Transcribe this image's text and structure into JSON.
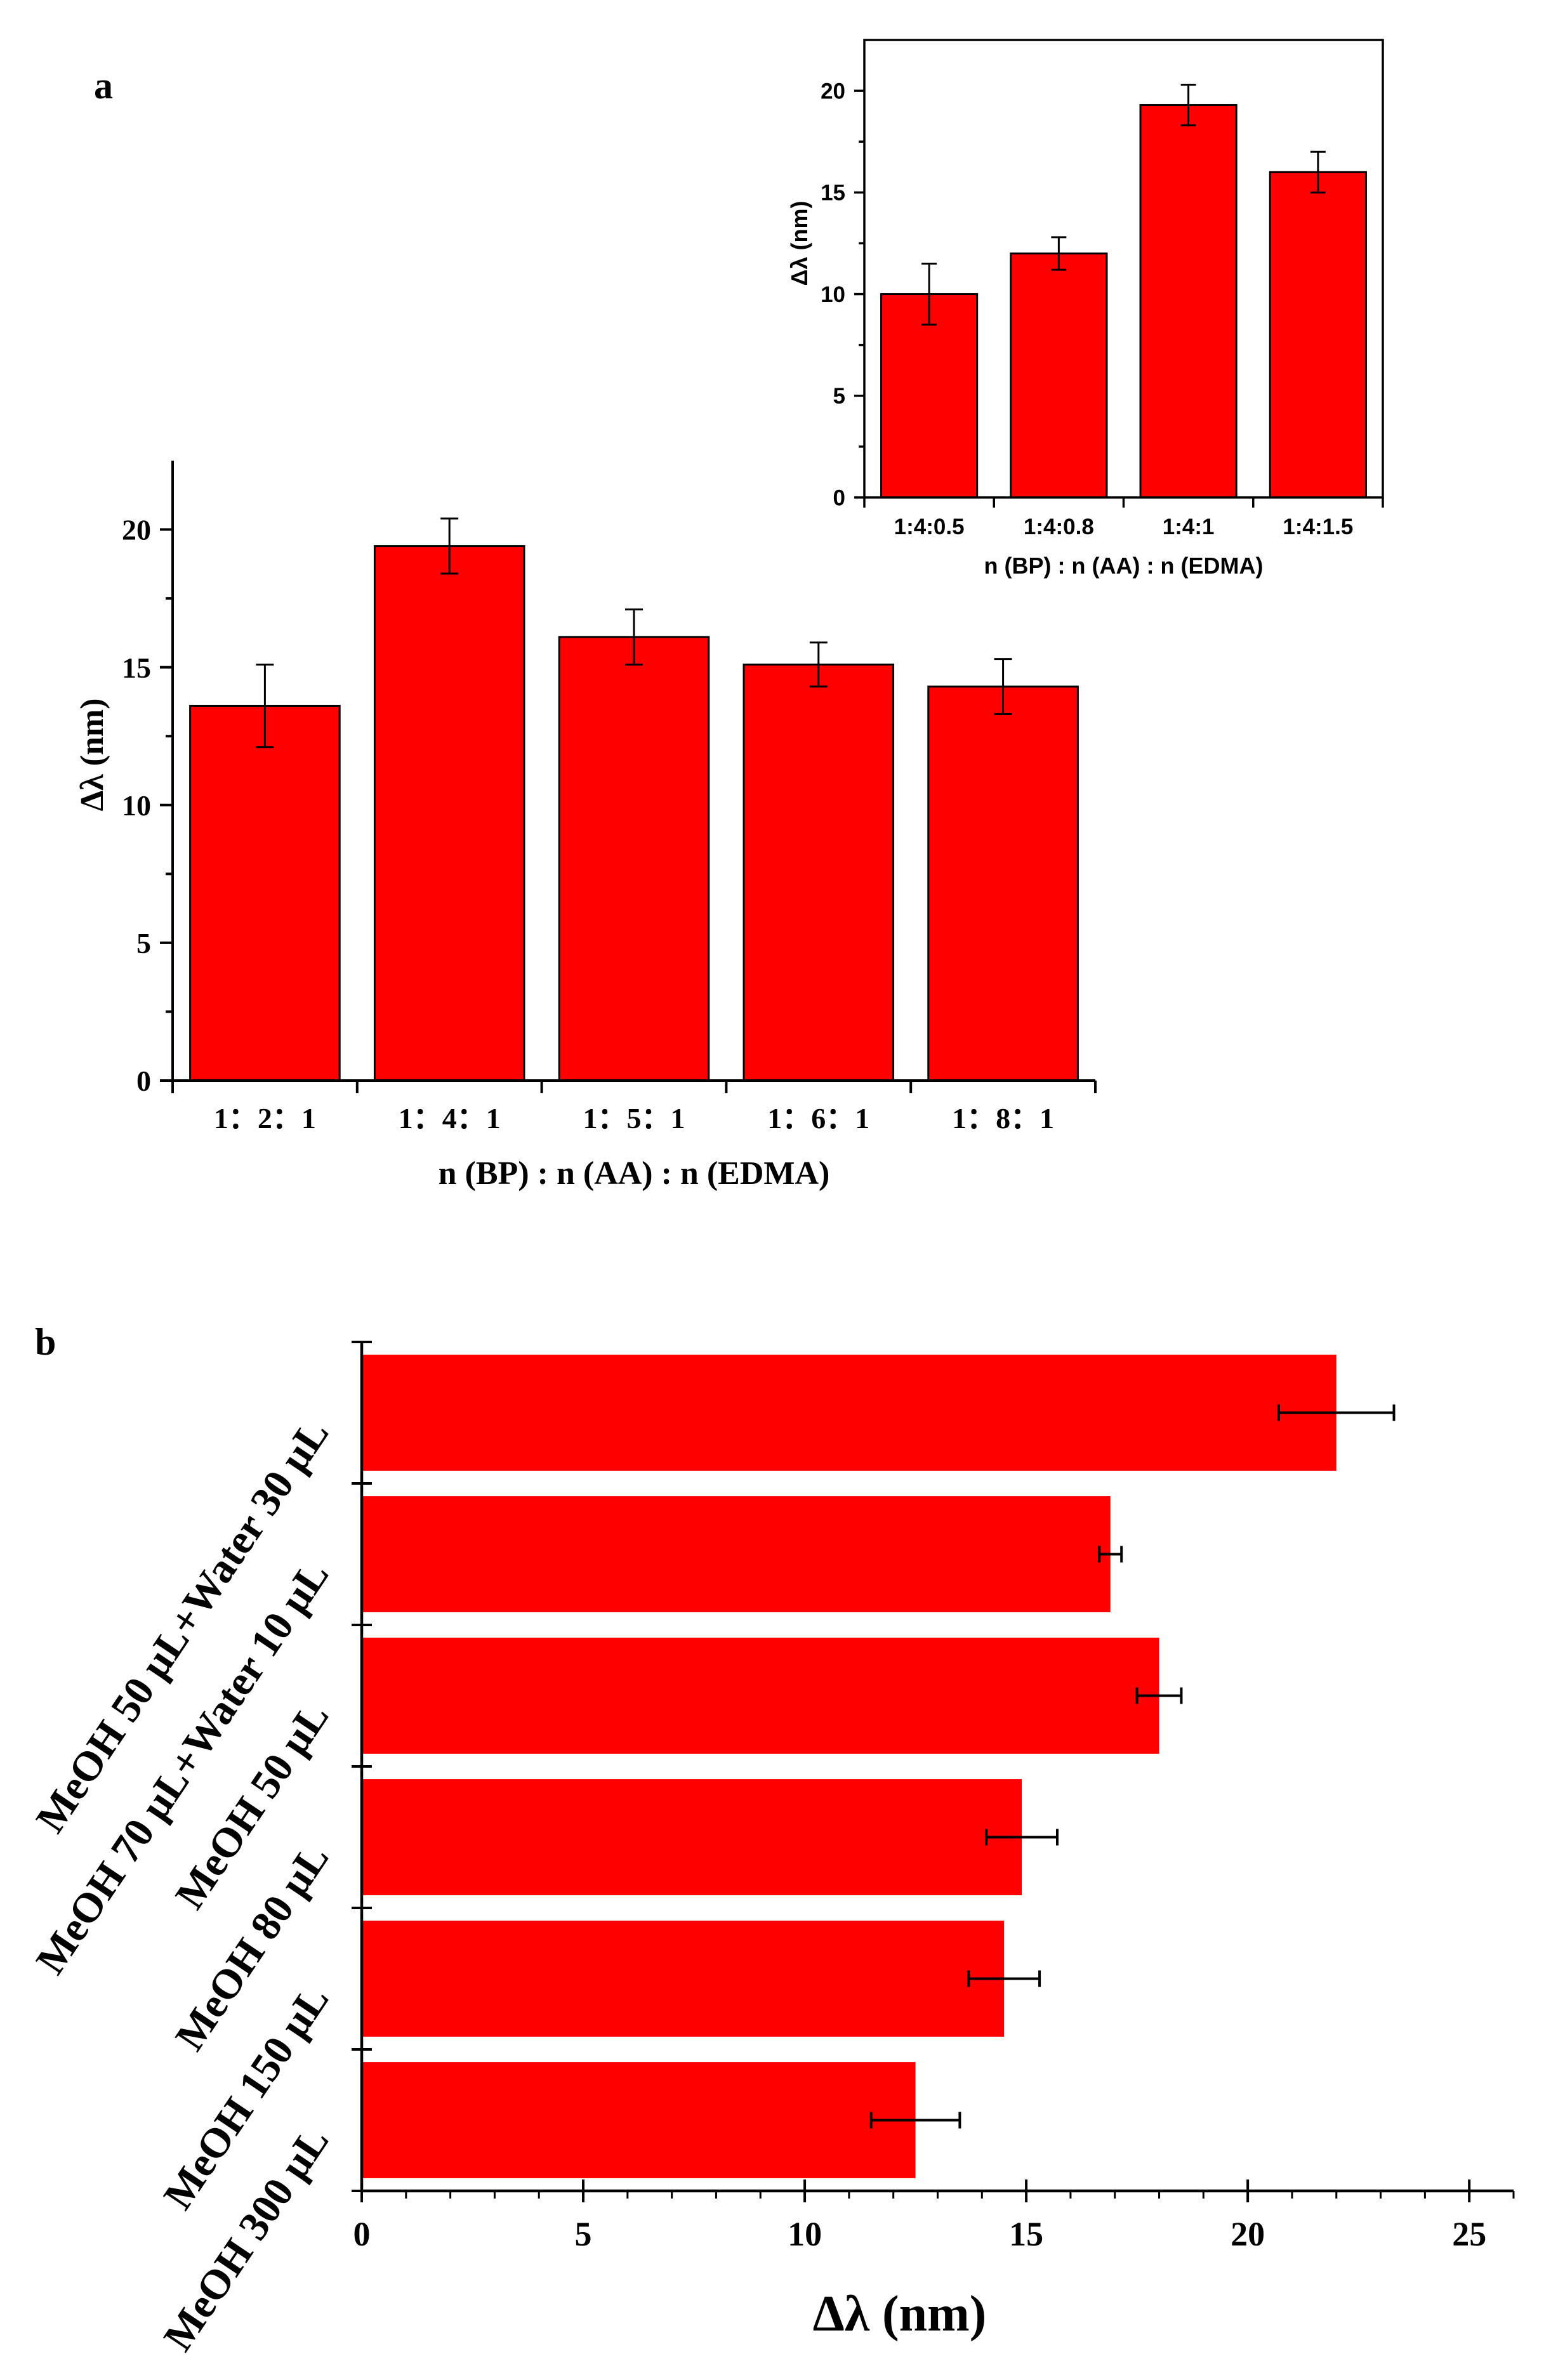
{
  "figure": {
    "panel_a_label": "a",
    "panel_b_label": "b"
  },
  "colors": {
    "bar_fill": "#ff0000",
    "bar_edge": "#000000",
    "axis": "#000000"
  },
  "chart_data": [
    {
      "id": "a-main",
      "type": "bar",
      "orientation": "vertical",
      "categories": [
        "1：2：1",
        "1：4：1",
        "1：5：1",
        "1：6：1",
        "1：8：1"
      ],
      "values": [
        13.6,
        19.4,
        16.1,
        15.1,
        14.3
      ],
      "errors": [
        1.5,
        1.0,
        1.0,
        0.8,
        1.0
      ],
      "title": "",
      "xlabel": "n (BP) : n (AA) : n (EDMA)",
      "ylabel": "Δλ (nm)",
      "ylim": [
        0,
        22.5
      ],
      "yticks": [
        0,
        5,
        10,
        15,
        20
      ],
      "grid": false
    },
    {
      "id": "a-inset",
      "type": "bar",
      "orientation": "vertical",
      "categories": [
        "1:4:0.5",
        "1:4:0.8",
        "1:4:1",
        "1:4:1.5"
      ],
      "values": [
        10.0,
        12.0,
        19.3,
        16.0
      ],
      "errors": [
        1.5,
        0.8,
        1.0,
        1.0
      ],
      "title": "",
      "xlabel": "n (BP) : n (AA) : n (EDMA)",
      "ylabel": "Δλ (nm)",
      "ylim": [
        0,
        22.5
      ],
      "yticks": [
        0,
        5,
        10,
        15,
        20
      ],
      "grid": false
    },
    {
      "id": "b",
      "type": "bar",
      "orientation": "horizontal",
      "categories": [
        "MeOH 50 μL+Water 30 μL",
        "MeOH 70 μL+Water 10 μL",
        "MeOH 50 μL",
        "MeOH 80 μL",
        "MeOH 150 μL",
        "MeOH 300 μL"
      ],
      "values": [
        22.0,
        16.9,
        18.0,
        14.9,
        14.5,
        12.5
      ],
      "errors": [
        1.3,
        0.25,
        0.5,
        0.8,
        0.8,
        1.0
      ],
      "title": "",
      "xlabel": "Δλ (nm)",
      "ylabel": "",
      "xlim": [
        0,
        26
      ],
      "xticks": [
        0,
        5,
        10,
        15,
        20,
        25
      ],
      "grid": false
    }
  ]
}
